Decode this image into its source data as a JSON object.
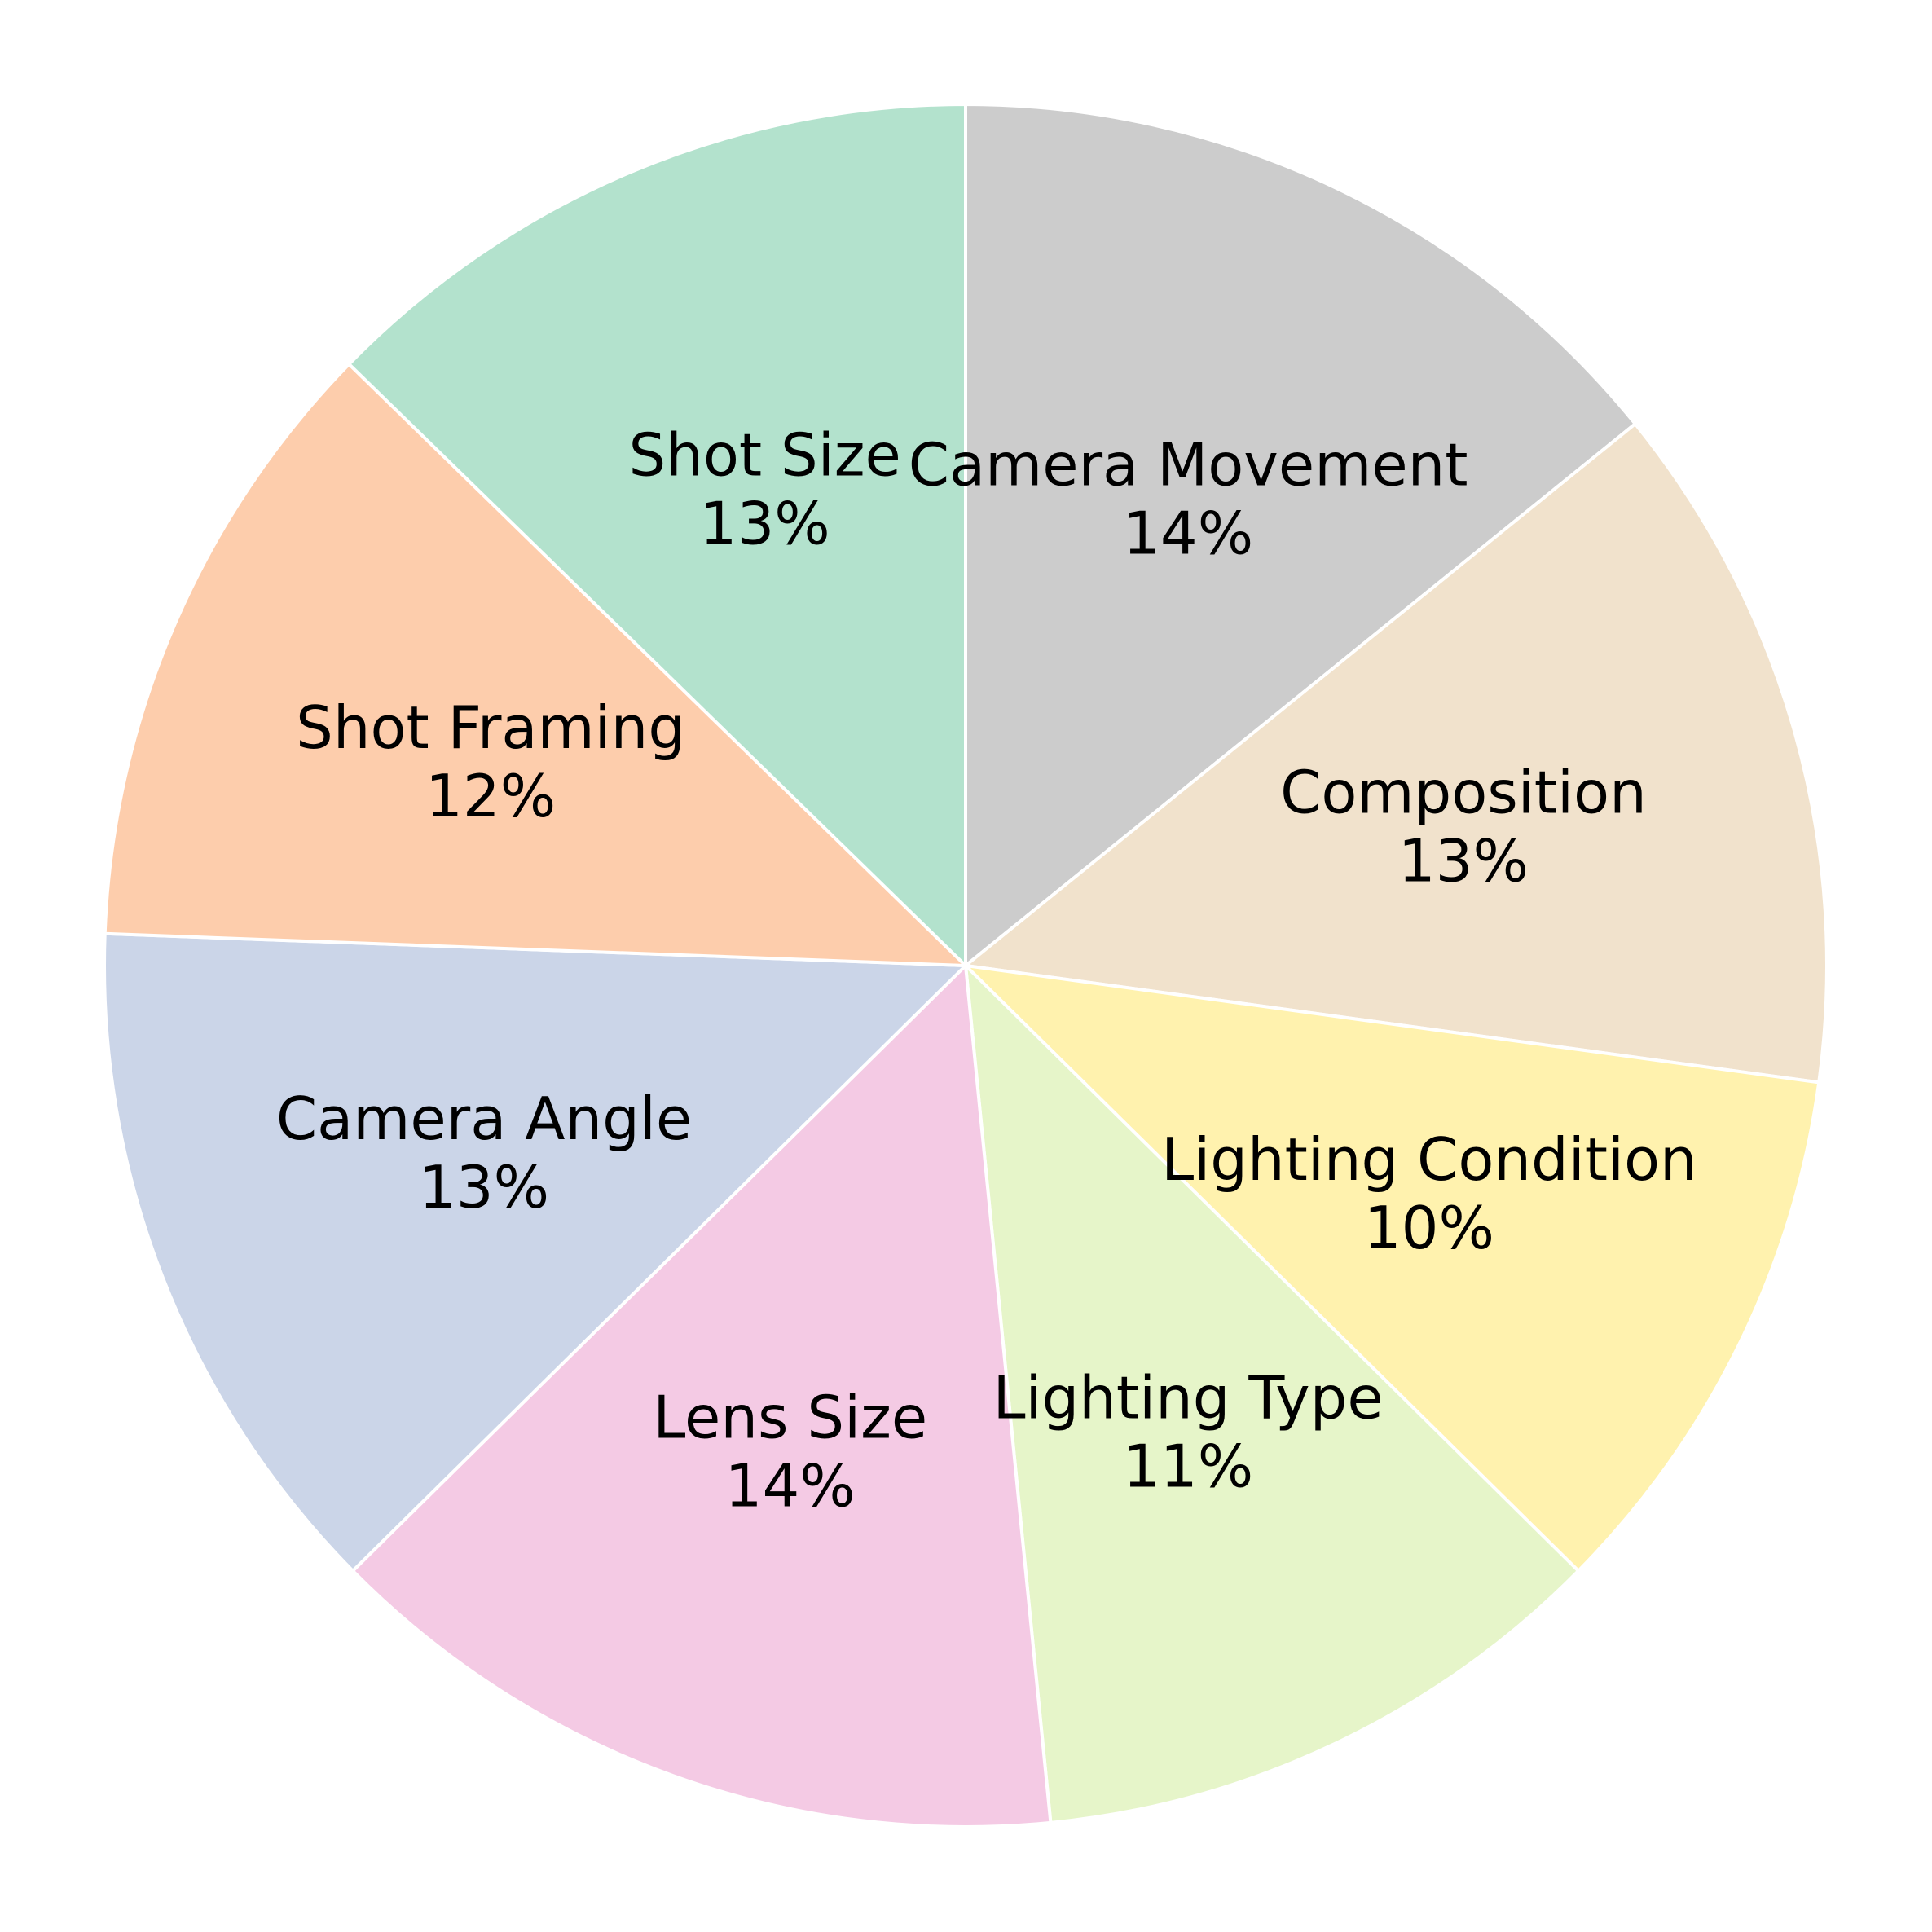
{
  "chart_data": {
    "type": "pie",
    "start_angle_deg": 90,
    "direction": "clockwise",
    "slice_edge_color": "#ffffff",
    "slices": [
      {
        "label": "Camera Movement",
        "pct": "14%",
        "value": 14.4,
        "color": "#cccccc"
      },
      {
        "label": "Composition",
        "pct": "13%",
        "value": 13.2,
        "color": "#f1e2cc"
      },
      {
        "label": "Lighting Condition",
        "pct": "10%",
        "value": 10.4,
        "color": "#fff2ae"
      },
      {
        "label": "Lighting Type",
        "pct": "11%",
        "value": 11.2,
        "color": "#e6f5c9"
      },
      {
        "label": "Lens Size",
        "pct": "14%",
        "value": 14.4,
        "color": "#f4cae4"
      },
      {
        "label": "Camera Angle",
        "pct": "13%",
        "value": 13.2,
        "color": "#cbd5e8"
      },
      {
        "label": "Shot Framing",
        "pct": "12%",
        "value": 11.9,
        "color": "#fdcdac"
      },
      {
        "label": "Shot Size",
        "pct": "13%",
        "value": 12.9,
        "color": "#b3e2cd"
      }
    ]
  }
}
